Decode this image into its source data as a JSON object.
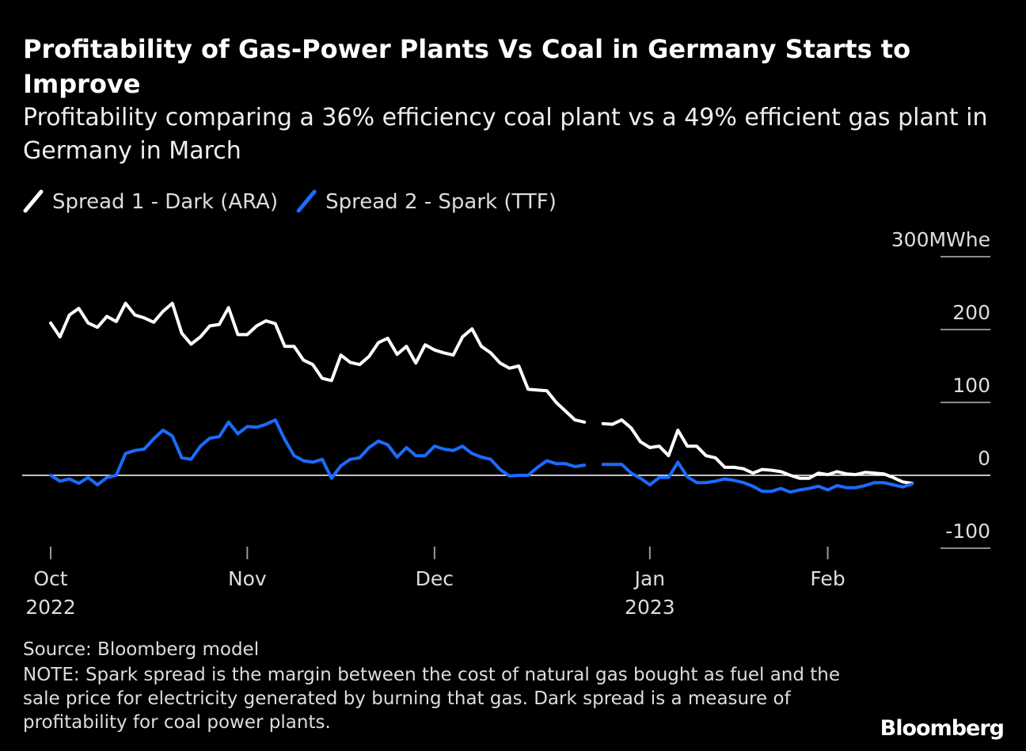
{
  "chart_data": {
    "type": "line",
    "title": "Profitability of Gas-Power Plants Vs Coal in Germany Starts to Improve",
    "subtitle": "Profitability comparing a 36% efficiency coal plant vs a 49% efficient gas plant in Germany in March",
    "source": "Source: Bloomberg model",
    "note": "NOTE: Spark spread is the margin between the cost of natural gas bought as fuel and the sale price for electricity generated by burning that gas. Dark spread is a measure of profitability for coal power plants.",
    "logo": "Bloomberg",
    "categories": [
      "Oct\n2022",
      null,
      null,
      null,
      null,
      null,
      null,
      null,
      null,
      null,
      null,
      null,
      null,
      null,
      null,
      null,
      null,
      null,
      null,
      null,
      null,
      "Nov",
      null,
      null,
      null,
      null,
      null,
      null,
      null,
      null,
      null,
      null,
      null,
      null,
      null,
      null,
      null,
      null,
      null,
      null,
      null,
      "Dec",
      null,
      null,
      null,
      null,
      null,
      null,
      null,
      null,
      null,
      null,
      null,
      null,
      null,
      null,
      null,
      null,
      null,
      null,
      null,
      null,
      null,
      null,
      "Jan\n2023",
      null,
      null,
      null,
      null,
      null,
      null,
      null,
      null,
      null,
      null,
      null,
      null,
      null,
      null,
      null,
      null,
      null,
      null,
      "Feb",
      null,
      null,
      null,
      null,
      null,
      null,
      null,
      null,
      null
    ],
    "series": [
      {
        "name": "Spread 1 - Dark (ARA)",
        "color": "#ffffff",
        "values": [
          209,
          190,
          220,
          229,
          209,
          203,
          218,
          211,
          236,
          220,
          216,
          210,
          225,
          236,
          195,
          180,
          190,
          205,
          207,
          230,
          193,
          193,
          205,
          212,
          208,
          177,
          177,
          158,
          152,
          133,
          130,
          165,
          155,
          152,
          163,
          182,
          188,
          166,
          177,
          154,
          179,
          172,
          168,
          165,
          190,
          201,
          177,
          168,
          154,
          147,
          150,
          118,
          117,
          116,
          100,
          88,
          76,
          73,
          null,
          71,
          70,
          76,
          65,
          46,
          38,
          40,
          27,
          62,
          40,
          40,
          27,
          24,
          11,
          11,
          9,
          3,
          8,
          7,
          5,
          0,
          -4,
          -4,
          3,
          1,
          5,
          2,
          1,
          4,
          3,
          2,
          -3,
          -9,
          -11
        ]
      },
      {
        "name": "Spread 2 - Spark (TTF)",
        "color": "#1a6cff",
        "values": [
          0,
          -8,
          -5,
          -11,
          -3,
          -13,
          -3,
          0,
          30,
          34,
          36,
          50,
          62,
          54,
          24,
          22,
          40,
          51,
          53,
          73,
          57,
          67,
          66,
          70,
          76,
          49,
          27,
          20,
          18,
          22,
          -4,
          13,
          22,
          24,
          38,
          47,
          42,
          25,
          38,
          27,
          27,
          40,
          36,
          34,
          40,
          30,
          25,
          22,
          8,
          -1,
          0,
          0,
          11,
          20,
          16,
          16,
          12,
          14,
          null,
          15,
          15,
          15,
          3,
          -4,
          -13,
          -3,
          -3,
          18,
          -2,
          -10,
          -10,
          -8,
          -5,
          -7,
          -10,
          -15,
          -22,
          -22,
          -18,
          -23,
          -20,
          -18,
          -15,
          -20,
          -14,
          -17,
          -17,
          -14,
          -10,
          -10,
          -13,
          -16,
          -12
        ]
      }
    ],
    "ylim": [
      -100,
      300
    ],
    "yticks": [
      -100,
      0,
      100,
      200,
      {
        "value": 300,
        "label": "300MWhe"
      }
    ]
  }
}
